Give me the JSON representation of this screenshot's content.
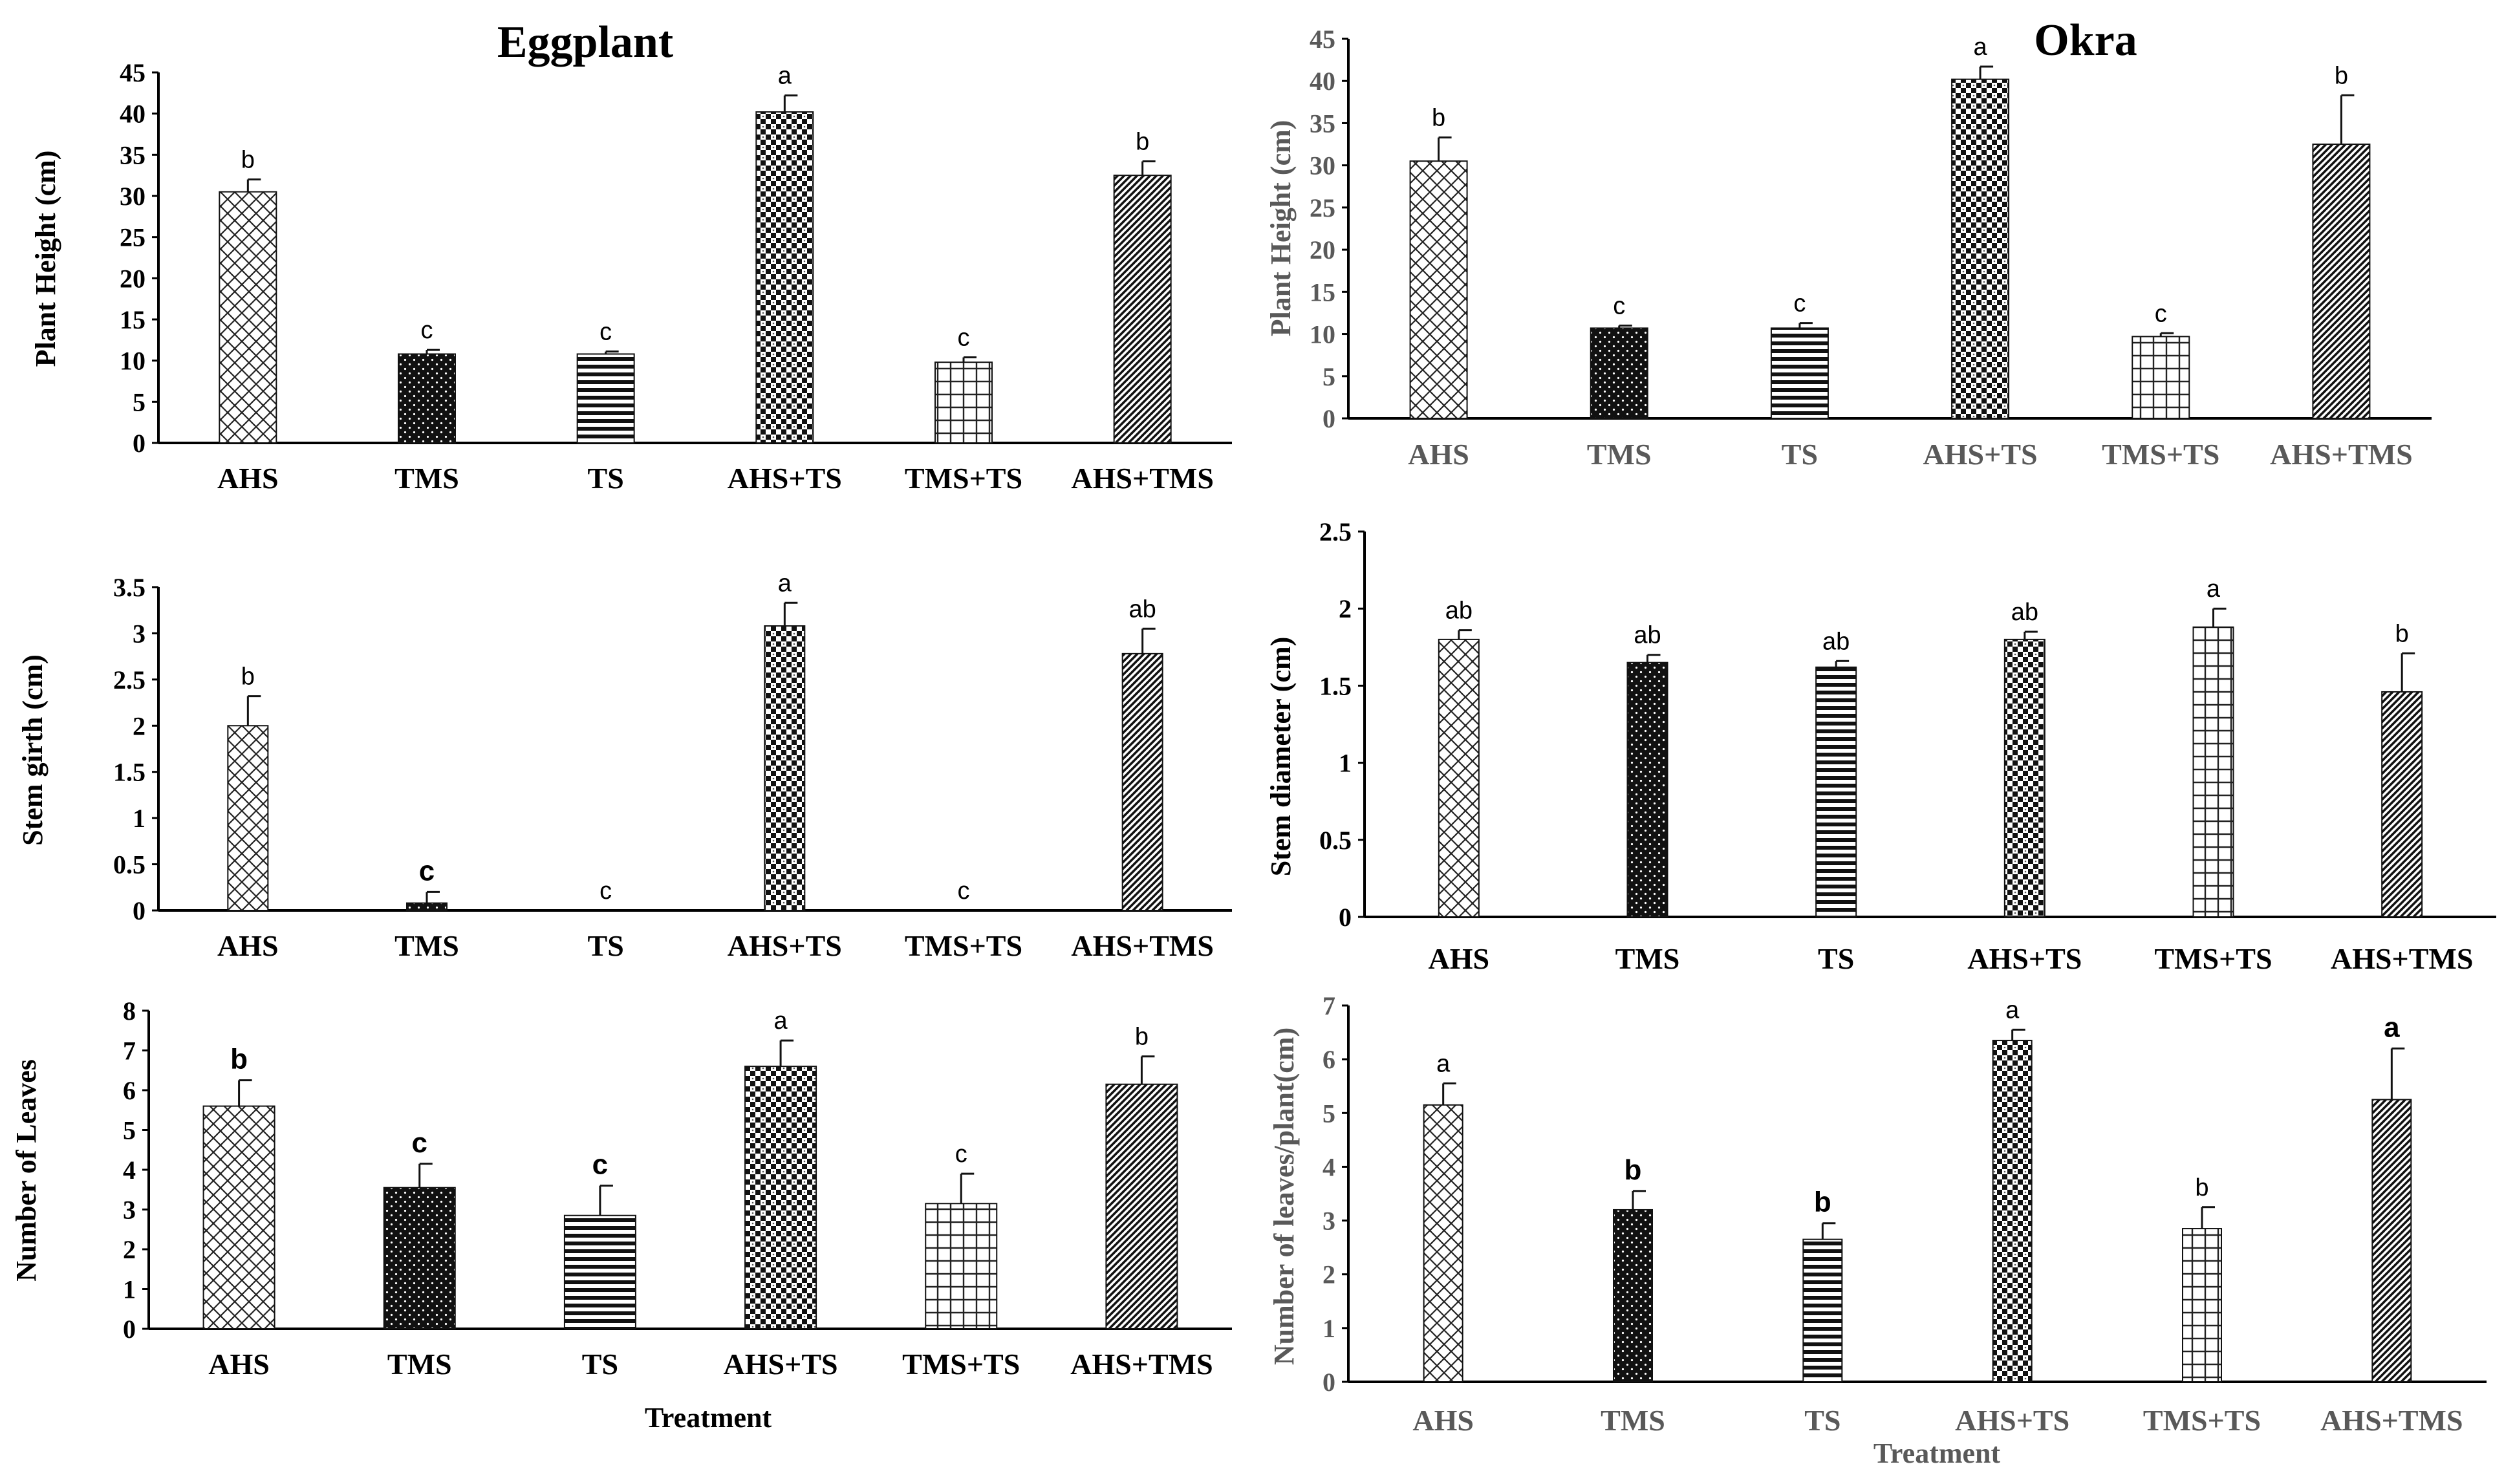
{
  "chart_data": [
    {
      "type": "bar",
      "title": "Eggplant",
      "xlabel": "",
      "ylabel": "Plant Height (cm)",
      "categories": [
        "AHS",
        "TMS",
        "TS",
        "AHS+TS",
        "TMS+TS",
        "AHS+TMS"
      ],
      "values": [
        30.5,
        10.8,
        10.8,
        40.2,
        9.8,
        32.5
      ],
      "errors": [
        1.5,
        0.5,
        0.3,
        2.0,
        0.6,
        1.7
      ],
      "letters": [
        "b",
        "c",
        "c",
        "a",
        "c",
        "b"
      ],
      "yticks": [
        "0",
        "5",
        "10",
        "15",
        "20",
        "25",
        "30",
        "35",
        "40",
        "45"
      ],
      "ylim": [
        0,
        45
      ]
    },
    {
      "type": "bar",
      "title": "Okra",
      "xlabel": "",
      "ylabel": "Plant Height (cm)",
      "categories": [
        "AHS",
        "TMS",
        "TS",
        "AHS+TS",
        "TMS+TS",
        "AHS+TMS"
      ],
      "values": [
        30.5,
        10.7,
        10.7,
        40.2,
        9.7,
        32.5
      ],
      "errors": [
        2.8,
        0.3,
        0.6,
        1.5,
        0.4,
        5.8
      ],
      "letters": [
        "b",
        "c",
        "c",
        "a",
        "c",
        "b"
      ],
      "yticks": [
        "0",
        "5",
        "10",
        "15",
        "20",
        "25",
        "30",
        "35",
        "40",
        "45"
      ],
      "ylim": [
        0,
        45
      ]
    },
    {
      "type": "bar",
      "title": "",
      "xlabel": "",
      "ylabel": "Stem girth (cm)",
      "categories": [
        "AHS",
        "TMS",
        "TS",
        "AHS+TS",
        "TMS+TS",
        "AHS+TMS"
      ],
      "values": [
        2.0,
        0.08,
        0,
        3.08,
        0,
        2.78
      ],
      "errors": [
        0.32,
        0.12,
        0,
        0.25,
        0,
        0.27
      ],
      "letters": [
        "b",
        "c",
        "c",
        "a",
        "c",
        "ab"
      ],
      "yticks": [
        "0",
        "0.5",
        "1",
        "1.5",
        "2",
        "2.5",
        "3",
        "3.5"
      ],
      "ylim": [
        0,
        3.5
      ]
    },
    {
      "type": "bar",
      "title": "",
      "xlabel": "",
      "ylabel": "Stem diameter (cm)",
      "categories": [
        "AHS",
        "TMS",
        "TS",
        "AHS+TS",
        "TMS+TS",
        "AHS+TMS"
      ],
      "values": [
        1.8,
        1.65,
        1.62,
        1.8,
        1.88,
        1.46
      ],
      "errors": [
        0.06,
        0.05,
        0.04,
        0.05,
        0.12,
        0.25
      ],
      "letters": [
        "ab",
        "ab",
        "ab",
        "ab",
        "a",
        "b"
      ],
      "yticks": [
        "0",
        "0.5",
        "1",
        "1.5",
        "2",
        "2.5"
      ],
      "ylim": [
        0,
        2.5
      ]
    },
    {
      "type": "bar",
      "title": "",
      "xlabel": "Treatment",
      "ylabel": "Number of Leaves",
      "categories": [
        "AHS",
        "TMS",
        "TS",
        "AHS+TS",
        "TMS+TS",
        "AHS+TMS"
      ],
      "values": [
        5.6,
        3.55,
        2.85,
        6.6,
        3.15,
        6.15
      ],
      "errors": [
        0.65,
        0.6,
        0.75,
        0.65,
        0.75,
        0.7
      ],
      "letters": [
        "b",
        "c",
        "c",
        "a",
        "c",
        "b"
      ],
      "yticks": [
        "0",
        "1",
        "2",
        "3",
        "4",
        "5",
        "6",
        "7",
        "8"
      ],
      "ylim": [
        0,
        8
      ]
    },
    {
      "type": "bar",
      "title": "",
      "xlabel": "Treatment",
      "ylabel": "Number of leaves/plant(cm)",
      "categories": [
        "AHS",
        "TMS",
        "TS",
        "AHS+TS",
        "TMS+TS",
        "AHS+TMS"
      ],
      "values": [
        5.15,
        3.2,
        2.65,
        6.35,
        2.85,
        5.25
      ],
      "errors": [
        0.4,
        0.35,
        0.3,
        0.2,
        0.4,
        0.95
      ],
      "letters": [
        "a",
        "b",
        "b",
        "a",
        "b",
        "a"
      ],
      "yticks": [
        "0",
        "1",
        "2",
        "3",
        "4",
        "5",
        "6",
        "7"
      ],
      "ylim": [
        0,
        7
      ]
    }
  ]
}
